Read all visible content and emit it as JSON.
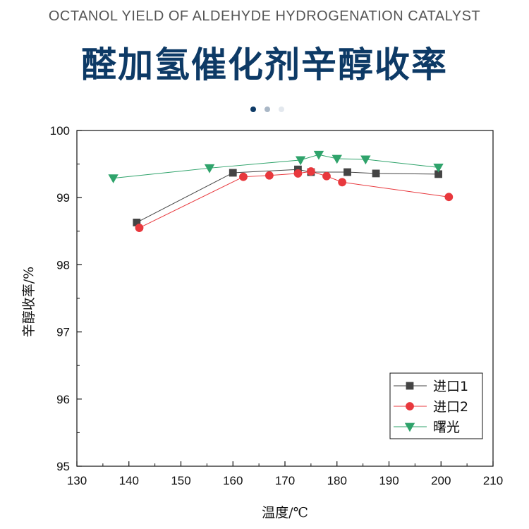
{
  "header": {
    "subtitle": "OCTANOL YIELD OF ALDEHYDE HYDROGENATION CATALYST",
    "title": "醛加氢催化剂辛醇收率"
  },
  "carousel": {
    "dot_count": 3,
    "active_index": 0
  },
  "colors": {
    "title": "#0d3a66",
    "series_1": "#444444",
    "series_2": "#e8383d",
    "series_3": "#2fa36b"
  },
  "chart_data": {
    "type": "line",
    "title": "",
    "xlabel": "温度/℃",
    "ylabel": "辛醇收率/%",
    "xlim": [
      130,
      210
    ],
    "ylim": [
      95,
      100
    ],
    "xticks": [
      130,
      140,
      150,
      160,
      170,
      180,
      190,
      200,
      210
    ],
    "yticks": [
      95,
      96,
      97,
      98,
      99,
      100
    ],
    "grid": false,
    "legend_position": "bottom-right",
    "series": [
      {
        "name": "进口1",
        "marker": "square",
        "color": "#444444",
        "x": [
          141.5,
          160,
          172.5,
          175,
          182,
          187.5,
          199.5
        ],
        "y": [
          98.63,
          99.37,
          99.42,
          99.38,
          99.38,
          99.36,
          99.35
        ]
      },
      {
        "name": "进口2",
        "marker": "circle",
        "color": "#e8383d",
        "x": [
          142,
          162,
          167,
          172.5,
          175,
          178,
          181,
          201.5
        ],
        "y": [
          98.55,
          99.31,
          99.33,
          99.36,
          99.39,
          99.32,
          99.23,
          99.01
        ]
      },
      {
        "name": "曙光",
        "marker": "triangle-down",
        "color": "#2fa36b",
        "x": [
          137,
          155.5,
          173,
          176.5,
          180,
          185.5,
          199.5
        ],
        "y": [
          99.29,
          99.44,
          99.56,
          99.64,
          99.58,
          99.57,
          99.45
        ]
      }
    ]
  }
}
